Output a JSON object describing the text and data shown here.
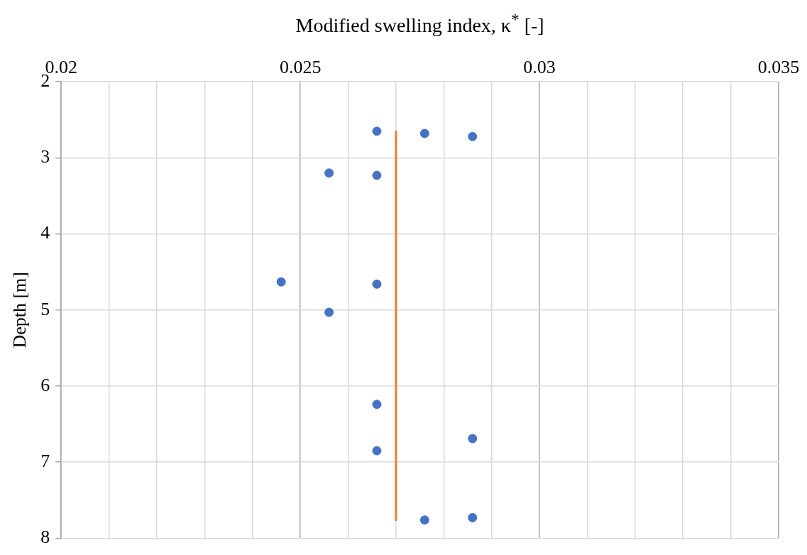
{
  "chart_data": {
    "type": "scatter",
    "xlabel": "Modified swelling index, κ$^{*}$ [-]",
    "ylabel": "Depth [m]",
    "xlim": [
      0.02,
      0.035
    ],
    "xticks": [
      0.02,
      {
        "value": 0.021,
        "label": null
      },
      {
        "value": 0.022,
        "label": null
      },
      {
        "value": 0.023,
        "label": null
      },
      {
        "value": 0.024,
        "label": null
      },
      0.025,
      {
        "value": 0.026,
        "label": null
      },
      {
        "value": 0.027,
        "label": null
      },
      {
        "value": 0.028,
        "label": null
      },
      {
        "value": 0.029,
        "label": null
      },
      0.03,
      {
        "value": 0.031,
        "label": null
      },
      {
        "value": 0.032,
        "label": null
      },
      {
        "value": 0.033,
        "label": null
      },
      {
        "value": 0.034,
        "label": null
      },
      0.035
    ],
    "ylim": [
      8,
      2
    ],
    "yticks": [
      2,
      3,
      4,
      5,
      6,
      7,
      8
    ],
    "grid": true,
    "series": [
      {
        "type": "scatter",
        "marker": "circle",
        "color": "#4472c4",
        "x": [
          0.0266,
          0.0276,
          0.0286,
          0.0256,
          0.0266,
          0.0246,
          0.0266,
          0.0256,
          0.0266,
          0.0286,
          0.0266,
          0.0276,
          0.0286
        ],
        "values": [
          2.65,
          2.68,
          2.72,
          3.2,
          3.23,
          4.63,
          4.66,
          5.03,
          6.24,
          6.69,
          6.85,
          7.76,
          7.73
        ]
      },
      {
        "type": "line",
        "color": "#ed7d31",
        "x": [
          0.027,
          0.027
        ],
        "values": [
          2.65,
          7.76
        ]
      }
    ]
  }
}
